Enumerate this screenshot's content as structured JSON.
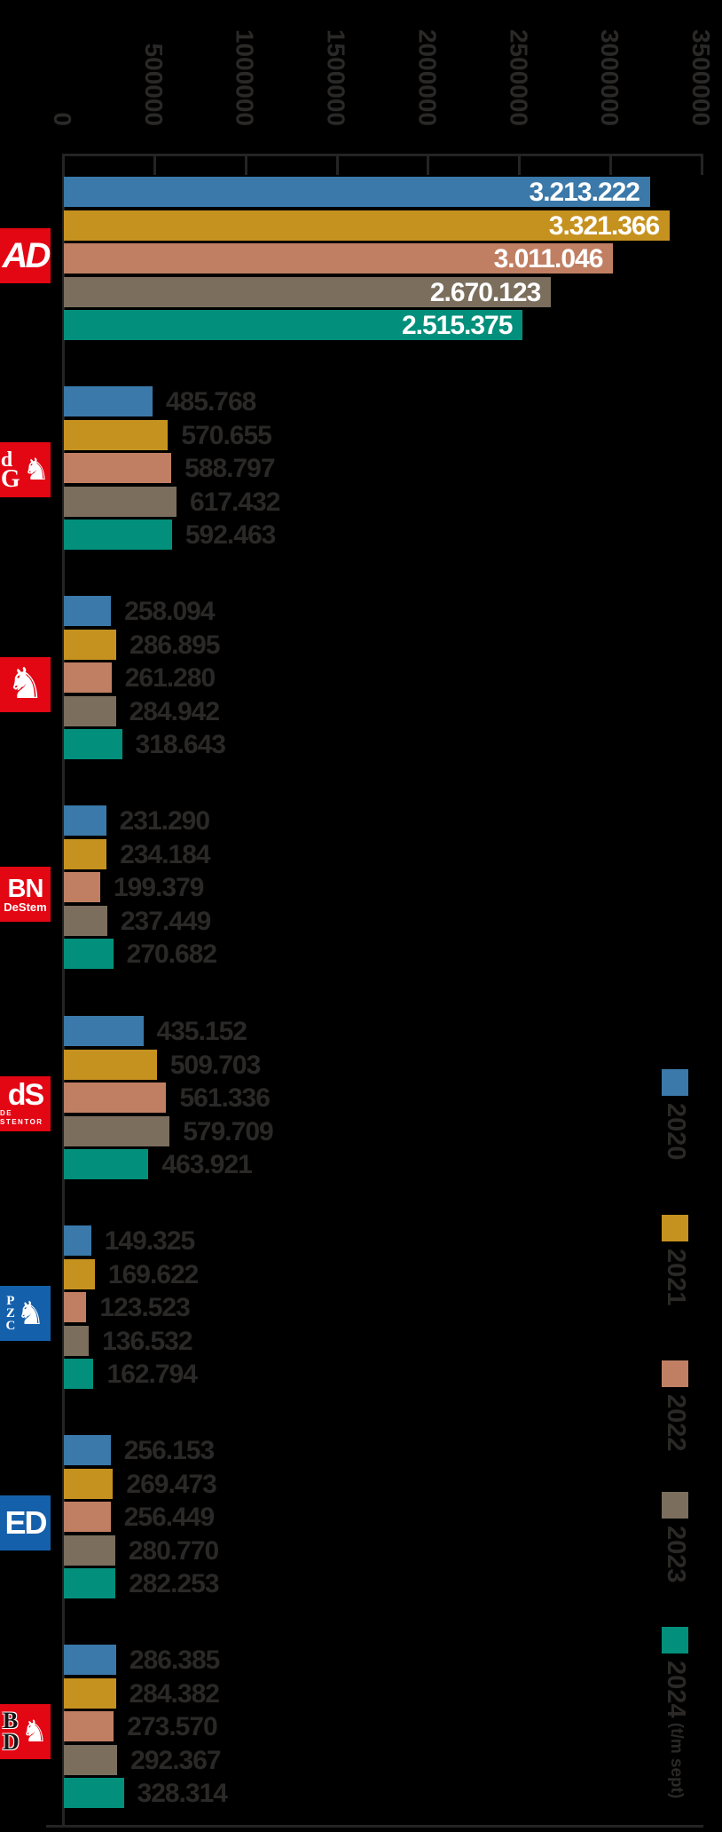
{
  "chart_data": {
    "type": "bar",
    "orientation": "horizontal",
    "x_axis": {
      "position": "top",
      "range": [
        0,
        3500000
      ],
      "ticks": [
        "0",
        "500000",
        "1000000",
        "1500000",
        "2000000",
        "2500000",
        "3000000",
        "3500000"
      ]
    },
    "series": [
      {
        "year": "2020",
        "color": "#3a79a9",
        "suffix": ""
      },
      {
        "year": "2021",
        "color": "#c6921f",
        "suffix": ""
      },
      {
        "year": "2022",
        "color": "#c07f63",
        "suffix": ""
      },
      {
        "year": "2023",
        "color": "#7b6e5d",
        "suffix": ""
      },
      {
        "year": "2024",
        "color": "#02907c",
        "suffix": "(t/m sept)"
      }
    ],
    "groups": [
      {
        "id": "ad",
        "labels_inside": true,
        "values": [
          3213222,
          3321366,
          3011046,
          2670123,
          2515375
        ],
        "labels": [
          "3.213.222",
          "3.321.366",
          "3.011.046",
          "2.670.123",
          "2.515.375"
        ]
      },
      {
        "id": "dg",
        "labels_inside": false,
        "values": [
          485768,
          570655,
          588797,
          617432,
          592463
        ],
        "labels": [
          "485.768",
          "570.655",
          "588.797",
          "617.432",
          "592.463"
        ]
      },
      {
        "id": "tubantia",
        "labels_inside": false,
        "values": [
          258094,
          286895,
          261280,
          284942,
          318643
        ],
        "labels": [
          "258.094",
          "286.895",
          "261.280",
          "284.942",
          "318.643"
        ]
      },
      {
        "id": "bn-destem",
        "labels_inside": false,
        "values": [
          231290,
          234184,
          199379,
          237449,
          270682
        ],
        "labels": [
          "231.290",
          "234.184",
          "199.379",
          "237.449",
          "270.682"
        ]
      },
      {
        "id": "de-stentor",
        "labels_inside": false,
        "values": [
          435152,
          509703,
          561336,
          579709,
          463921
        ],
        "labels": [
          "435.152",
          "509.703",
          "561.336",
          "579.709",
          "463.921"
        ]
      },
      {
        "id": "pzc",
        "labels_inside": false,
        "values": [
          149325,
          169622,
          123523,
          136532,
          162794
        ],
        "labels": [
          "149.325",
          "169.622",
          "123.523",
          "136.532",
          "162.794"
        ]
      },
      {
        "id": "ed",
        "labels_inside": false,
        "values": [
          256153,
          269473,
          256449,
          280770,
          282253
        ],
        "labels": [
          "256.153",
          "269.473",
          "256.449",
          "280.770",
          "282.253"
        ]
      },
      {
        "id": "bd",
        "labels_inside": false,
        "values": [
          286385,
          284382,
          273570,
          292367,
          328314
        ],
        "labels": [
          "286.385",
          "284.382",
          "273.570",
          "292.367",
          "328.314"
        ]
      }
    ],
    "legend_position": "right"
  },
  "icons": {
    "horse": "♞",
    "lion": "♞"
  },
  "logos": {
    "ad": {
      "text": "AD"
    },
    "dg": {
      "l1": "d",
      "l2": "G"
    },
    "bn": {
      "l1": "BN",
      "l2": "DeStem"
    },
    "stentor": {
      "l1": "dS",
      "l2": "DE STENTOR"
    },
    "pzc": {
      "l1": "P",
      "l2": "Z",
      "l3": "C"
    },
    "ed": {
      "text": "ED"
    },
    "bd": {
      "l1": "B",
      "l2": "D"
    }
  }
}
